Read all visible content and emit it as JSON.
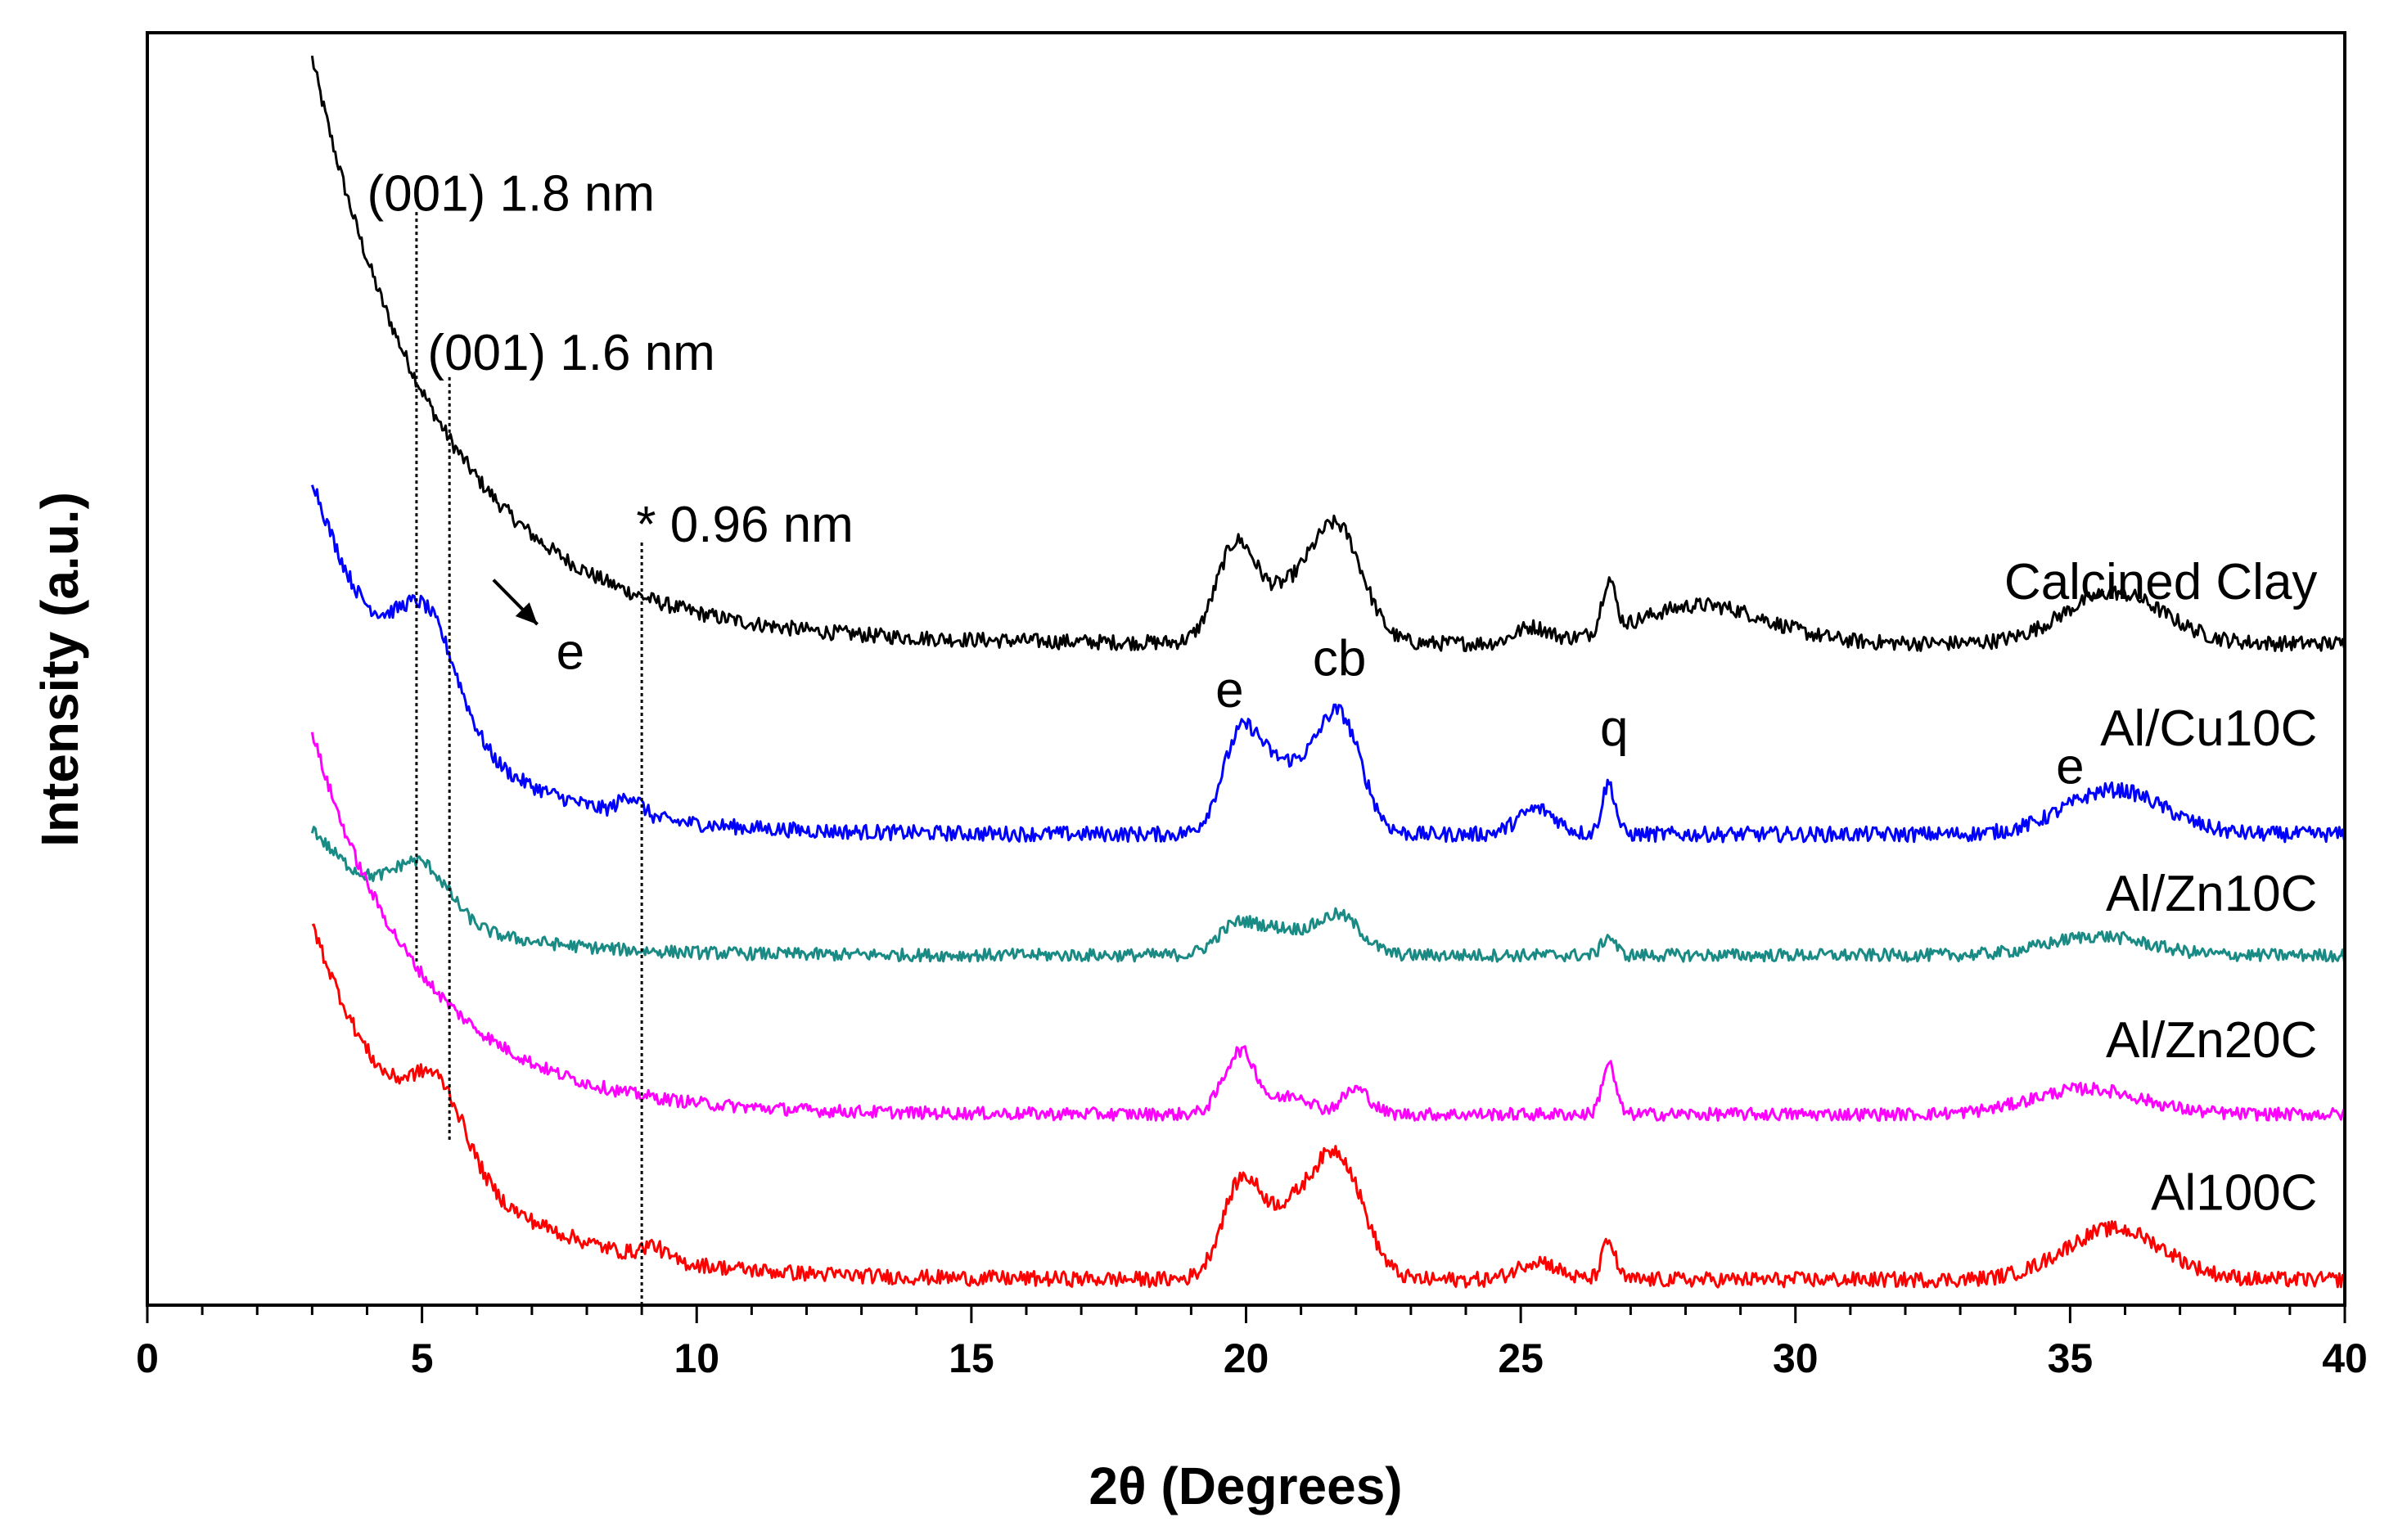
{
  "chart_data": {
    "type": "line",
    "title": "",
    "xlabel": "2θ (Degrees)",
    "ylabel": "Intensity (a.u.)",
    "xlim": [
      0,
      40
    ],
    "ylim": [
      0,
      1
    ],
    "x_ticks": [
      0,
      5,
      10,
      15,
      20,
      25,
      30,
      35,
      40
    ],
    "x_tick_labels": [
      "0",
      "5",
      "10",
      "15",
      "20",
      "25",
      "30",
      "35",
      "40"
    ],
    "grid": false,
    "series": [
      {
        "name": "Calcined Clay",
        "color": "#000000",
        "offset": 0.52,
        "shape": {
          "baseline": 0.0,
          "decay_amp": 0.46,
          "decay_rate": 0.42,
          "noise": 0.006
        },
        "peaks": [
          {
            "x": 19.8,
            "h": 0.07,
            "w": 0.35
          },
          {
            "x": 20.8,
            "h": 0.04,
            "w": 0.6
          },
          {
            "x": 21.7,
            "h": 0.08,
            "w": 0.45
          },
          {
            "x": 25.2,
            "h": 0.012,
            "w": 0.3
          },
          {
            "x": 26.6,
            "h": 0.04,
            "w": 0.12
          },
          {
            "x": 28.3,
            "h": 0.03,
            "w": 1.2
          },
          {
            "x": 35.8,
            "h": 0.04,
            "w": 0.9
          }
        ]
      },
      {
        "name": "Al/Cu10C",
        "color": "#0000ff",
        "offset": 0.37,
        "shape": {
          "baseline": 0.0,
          "decay_amp": 0.28,
          "decay_rate": 0.5,
          "noise": 0.006
        },
        "peaks": [
          {
            "x": 5.1,
            "h": 0.08,
            "w": 0.55
          },
          {
            "x": 8.8,
            "h": 0.015,
            "w": 0.2
          },
          {
            "x": 19.9,
            "h": 0.07,
            "w": 0.35
          },
          {
            "x": 20.7,
            "h": 0.05,
            "w": 0.5
          },
          {
            "x": 21.7,
            "h": 0.09,
            "w": 0.4
          },
          {
            "x": 25.3,
            "h": 0.02,
            "w": 0.35
          },
          {
            "x": 26.6,
            "h": 0.04,
            "w": 0.12
          },
          {
            "x": 35.8,
            "h": 0.035,
            "w": 0.9
          }
        ]
      },
      {
        "name": "Al/Zn10C",
        "color": "#1a8a85",
        "offset": 0.275,
        "shape": {
          "baseline": 0.0,
          "decay_amp": 0.1,
          "decay_rate": 0.55,
          "noise": 0.005
        },
        "peaks": [
          {
            "x": 5.0,
            "h": 0.04,
            "w": 0.5
          },
          {
            "x": 19.8,
            "h": 0.02,
            "w": 0.35
          },
          {
            "x": 20.6,
            "h": 0.02,
            "w": 0.5
          },
          {
            "x": 21.7,
            "h": 0.03,
            "w": 0.4
          },
          {
            "x": 26.6,
            "h": 0.015,
            "w": 0.12
          },
          {
            "x": 35.5,
            "h": 0.015,
            "w": 0.9
          }
        ]
      },
      {
        "name": "Al/Zn20C",
        "color": "#ff00ff",
        "offset": 0.15,
        "shape": {
          "baseline": 0.0,
          "decay_amp": 0.3,
          "decay_rate": 0.5,
          "noise": 0.005
        },
        "peaks": [
          {
            "x": 19.9,
            "h": 0.05,
            "w": 0.3
          },
          {
            "x": 20.9,
            "h": 0.015,
            "w": 0.3
          },
          {
            "x": 22.0,
            "h": 0.02,
            "w": 0.25
          },
          {
            "x": 26.6,
            "h": 0.04,
            "w": 0.12
          },
          {
            "x": 35.3,
            "h": 0.02,
            "w": 1.0
          }
        ]
      },
      {
        "name": "Al100C",
        "color": "#ff0000",
        "offset": 0.02,
        "shape": {
          "baseline": 0.0,
          "decay_amp": 0.28,
          "decay_rate": 0.45,
          "noise": 0.006
        },
        "peaks": [
          {
            "x": 5.3,
            "h": 0.06,
            "w": 0.5
          },
          {
            "x": 9.2,
            "h": 0.01,
            "w": 0.2
          },
          {
            "x": 19.9,
            "h": 0.07,
            "w": 0.35
          },
          {
            "x": 20.8,
            "h": 0.05,
            "w": 0.5
          },
          {
            "x": 21.7,
            "h": 0.09,
            "w": 0.45
          },
          {
            "x": 25.3,
            "h": 0.015,
            "w": 0.35
          },
          {
            "x": 26.6,
            "h": 0.03,
            "w": 0.12
          },
          {
            "x": 35.8,
            "h": 0.04,
            "w": 0.9
          }
        ]
      }
    ],
    "reference_lines": [
      {
        "x": 4.9,
        "y_from": 0.27,
        "y_to": 0.86
      },
      {
        "x": 5.5,
        "y_from": 0.13,
        "y_to": 0.73
      },
      {
        "x": 9.0,
        "y_from": 0.0,
        "y_to": 0.6
      }
    ],
    "annotations": [
      {
        "text": "(001)  1.8 nm",
        "x": 4.0,
        "y": 0.86
      },
      {
        "text": "(001) 1.6 nm",
        "x": 5.1,
        "y": 0.735
      },
      {
        "text": "* 0.96 nm",
        "x": 8.9,
        "y": 0.6
      },
      {
        "text": "e",
        "x": 7.7,
        "y": 0.5
      },
      {
        "text": "e",
        "x": 19.7,
        "y": 0.47
      },
      {
        "text": "cb",
        "x": 21.7,
        "y": 0.495
      },
      {
        "text": "q",
        "x": 26.7,
        "y": 0.44
      },
      {
        "text": "e",
        "x": 35.0,
        "y": 0.41
      }
    ],
    "arrow": {
      "from": [
        6.3,
        0.57
      ],
      "to": [
        7.1,
        0.535
      ]
    }
  }
}
